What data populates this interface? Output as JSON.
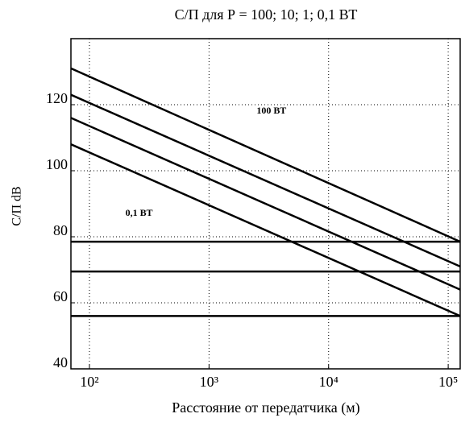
{
  "chart_data": {
    "type": "line",
    "title": "С/П для Р = 100; 10; 1; 0,1 ВТ",
    "x_label": "Расстояние от передатчика (м)",
    "y_label": "С/П dB",
    "log_x": true,
    "grid": true,
    "xlim": [
      70,
      126000
    ],
    "xticks": [
      {
        "value": 100,
        "label": "10²"
      },
      {
        "value": 1000,
        "label": "10³"
      },
      {
        "value": 10000,
        "label": "10⁴"
      },
      {
        "value": 100000,
        "label": "10⁵"
      }
    ],
    "ylim": [
      40,
      140
    ],
    "yticks": [
      40,
      60,
      80,
      100,
      120
    ],
    "annotations": [
      {
        "text": "100 ВТ",
        "x": 2500,
        "y": 118
      },
      {
        "text": "0,1 ВТ",
        "x": 200,
        "y": 87
      }
    ],
    "series": [
      {
        "color": "#000000",
        "x": [
          70,
          126000
        ],
        "values": [
          131,
          78.5
        ]
      },
      {
        "color": "#000000",
        "x": [
          70,
          126000
        ],
        "values": [
          123,
          71
        ]
      },
      {
        "color": "#000000",
        "x": [
          70,
          126000
        ],
        "values": [
          116,
          64
        ]
      },
      {
        "color": "#000000",
        "x": [
          70,
          126000
        ],
        "values": [
          108,
          56
        ]
      },
      {
        "color": "#000000",
        "x": [
          70,
          126000
        ],
        "values": [
          78.5,
          78.5
        ]
      },
      {
        "color": "#000000",
        "x": [
          70,
          126000
        ],
        "values": [
          69.5,
          69.5
        ]
      },
      {
        "color": "#000000",
        "x": [
          70,
          126000
        ],
        "values": [
          56,
          56
        ]
      }
    ]
  }
}
